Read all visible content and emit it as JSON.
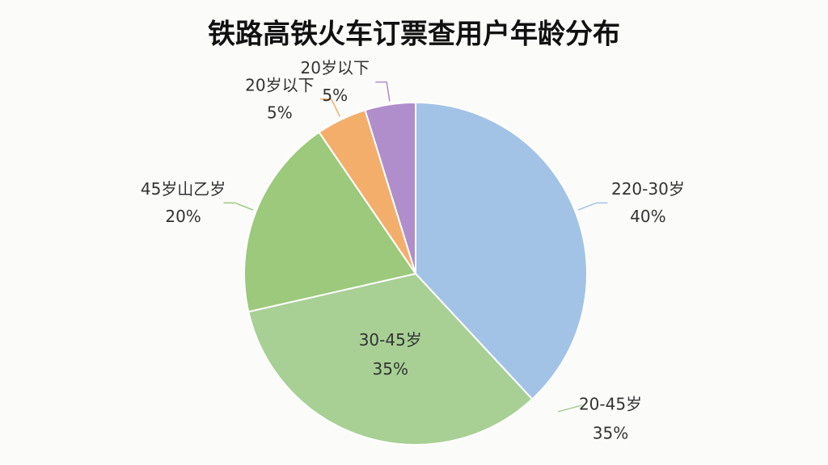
{
  "chart_data": {
    "type": "pie",
    "title": "铁路高铁火车订票查用户年龄分布",
    "categories": [
      "220-30岁",
      "30-45岁",
      "45岁山乙岁",
      "20岁以下",
      "20岁以下"
    ],
    "values": [
      40,
      35,
      20,
      5,
      5
    ],
    "value_labels": [
      "40%",
      "35%",
      "20%",
      "5%",
      "5%"
    ],
    "colors": [
      "#a3c3e6",
      "#a8d095",
      "#9cc97c",
      "#f3ae6c",
      "#b08dcb"
    ],
    "annotations": [
      {
        "text": "20-45岁",
        "value_label": "35%"
      }
    ]
  }
}
